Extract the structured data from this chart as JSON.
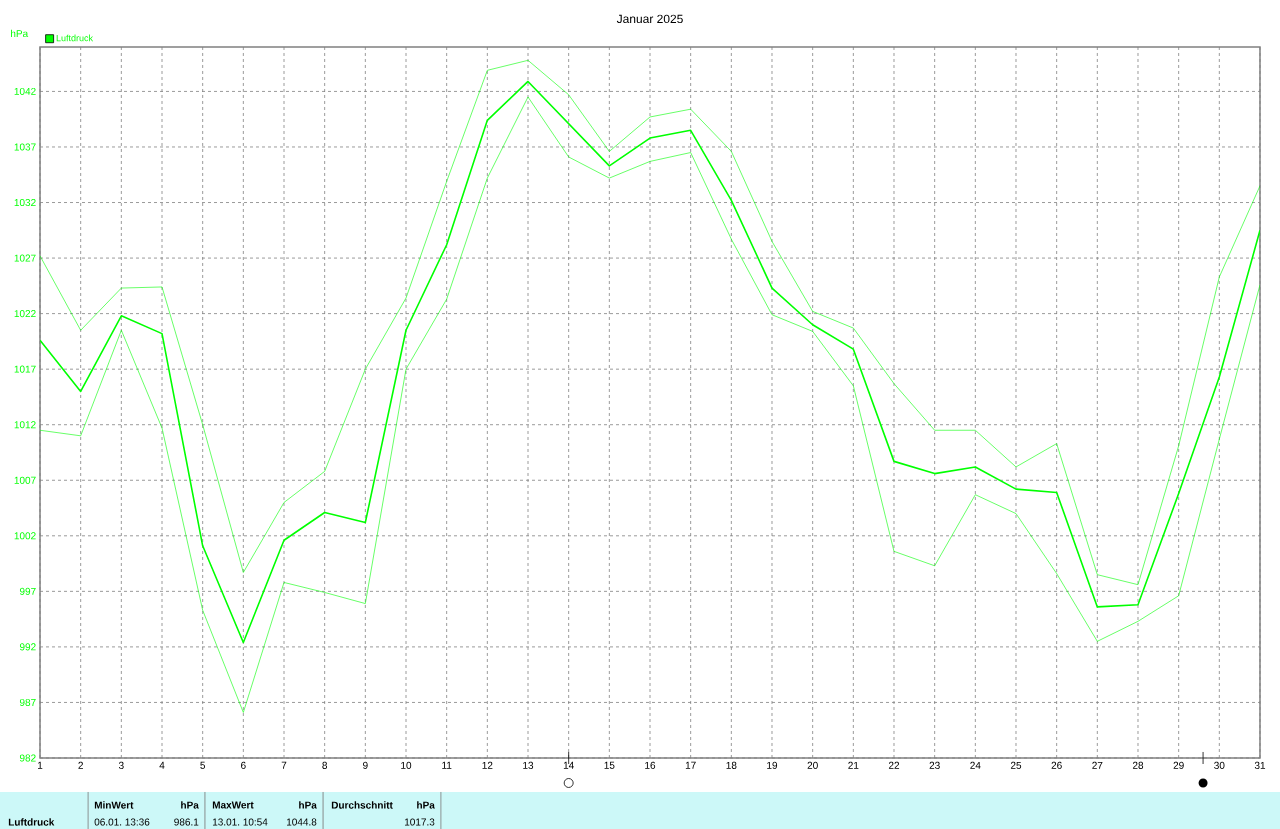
{
  "chart_data": {
    "type": "line",
    "title": "Januar 2025",
    "ylabel": "hPa",
    "x": [
      1,
      2,
      3,
      4,
      5,
      6,
      7,
      8,
      9,
      10,
      11,
      12,
      13,
      14,
      15,
      16,
      17,
      18,
      19,
      20,
      21,
      22,
      23,
      24,
      25,
      26,
      27,
      28,
      29,
      30,
      31
    ],
    "series": [
      {
        "name": "Luftdruck",
        "color": "#00ff00",
        "values": [
          1019.6,
          1015.0,
          1021.8,
          1020.2,
          1001.1,
          992.4,
          1001.6,
          1004.1,
          1003.2,
          1020.5,
          1028.2,
          1039.4,
          1042.9,
          1039.1,
          1035.3,
          1037.8,
          1038.5,
          1032.2,
          1024.3,
          1021.0,
          1018.8,
          1008.7,
          1007.6,
          1008.2,
          1006.2,
          1005.9,
          995.6,
          995.8,
          1005.8,
          1016.3,
          1029.5
        ]
      },
      {
        "color": "#00ff00",
        "values": [
          1027.2,
          1020.5,
          1024.3,
          1024.4,
          1012.0,
          998.7,
          1005.0,
          1007.8,
          1017.0,
          1023.4,
          1033.9,
          1043.9,
          1044.8,
          1041.7,
          1036.6,
          1039.7,
          1040.4,
          1036.6,
          1028.5,
          1022.2,
          1020.7,
          1015.7,
          1011.5,
          1011.5,
          1008.2,
          1010.3,
          998.5,
          997.6,
          1010.1,
          1025.3,
          1033.5
        ]
      },
      {
        "color": "#00ff00",
        "values": [
          1011.5,
          1011.0,
          1020.5,
          1011.7,
          995.3,
          986.1,
          997.8,
          996.9,
          995.9,
          1017.0,
          1023.3,
          1034.2,
          1041.5,
          1036.1,
          1034.2,
          1035.7,
          1036.5,
          1028.7,
          1021.9,
          1020.4,
          1015.5,
          1000.6,
          999.3,
          1005.7,
          1004.0,
          998.6,
          992.5,
          994.3,
          996.6,
          1010.7,
          1024.6
        ]
      }
    ],
    "xlim": [
      1,
      31
    ],
    "xticks": [
      1,
      2,
      3,
      4,
      5,
      6,
      7,
      8,
      9,
      10,
      11,
      12,
      13,
      14,
      15,
      16,
      17,
      18,
      19,
      20,
      21,
      22,
      23,
      24,
      25,
      26,
      27,
      28,
      29,
      30,
      31
    ],
    "ylim": [
      982,
      1046
    ],
    "yticks": [
      982,
      987,
      992,
      997,
      1002,
      1007,
      1012,
      1017,
      1022,
      1027,
      1032,
      1037,
      1042
    ],
    "grid": true,
    "legend": "top left",
    "marker": "none",
    "annotations": [
      "Luftdruck",
      "MinWert",
      "hPa",
      "06.01. 13:36",
      "986.1",
      "MaxWert",
      "hPa",
      "13.01. 10:54",
      "1044.8",
      "Durchschnitt",
      "hPa",
      "1017.3"
    ]
  }
}
